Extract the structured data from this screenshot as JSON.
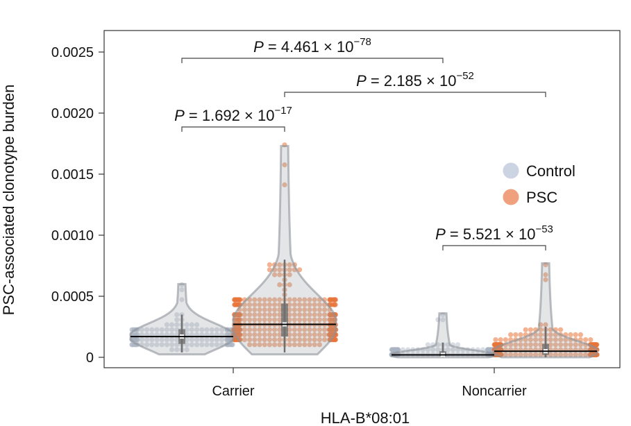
{
  "chart_data": {
    "type": "violin",
    "xlabel": "HLA-B*08:01",
    "ylabel": "PSC-associated clonotype burden",
    "ylim": [
      0,
      0.0027
    ],
    "yticks": [
      "0",
      "0.0005",
      "0.0010",
      "0.0015",
      "0.0020",
      "0.0025"
    ],
    "ytick_values": [
      0,
      0.0005,
      0.001,
      0.0015,
      0.002,
      0.0025
    ],
    "categories": [
      "Carrier",
      "Noncarrier"
    ],
    "legend": {
      "placement": "right",
      "entries": [
        {
          "label": "Control",
          "color": "#ccd3e2"
        },
        {
          "label": "PSC",
          "color": "#f0a07c"
        }
      ]
    },
    "series": [
      {
        "name": "Control",
        "color": "#aab3c4",
        "groups": [
          {
            "category": "Carrier",
            "median": 0.00017,
            "q1": 0.00011,
            "q3": 0.00023,
            "whisker_low": 4e-05,
            "whisker_high": 0.00035,
            "max": 0.0006,
            "n": 150
          },
          {
            "category": "Noncarrier",
            "median": 2e-05,
            "q1": 1e-05,
            "q3": 5e-05,
            "whisker_low": 0.0,
            "whisker_high": 0.00012,
            "max": 0.00036,
            "n": 300
          }
        ]
      },
      {
        "name": "PSC",
        "color": "#e8743b",
        "groups": [
          {
            "category": "Carrier",
            "median": 0.00027,
            "q1": 0.00017,
            "q3": 0.00044,
            "whisker_low": 4e-05,
            "whisker_high": 0.0008,
            "max": 0.00173,
            "n": 420
          },
          {
            "category": "Noncarrier",
            "median": 5e-05,
            "q1": 2e-05,
            "q3": 0.00011,
            "whisker_low": 0.0,
            "whisker_high": 0.00025,
            "max": 0.00077,
            "n": 340
          }
        ]
      }
    ],
    "comparisons": [
      {
        "from": "Carrier Control",
        "to": "Carrier PSC",
        "mantissa": "1.692",
        "exponent": "−17"
      },
      {
        "from": "Carrier Control",
        "to": "Noncarrier Control",
        "mantissa": "4.461",
        "exponent": "−78"
      },
      {
        "from": "Carrier PSC",
        "to": "Noncarrier PSC",
        "mantissa": "2.185",
        "exponent": "−52"
      },
      {
        "from": "Noncarrier Control",
        "to": "Noncarrier PSC",
        "mantissa": "5.521",
        "exponent": "−53"
      }
    ],
    "p_prefix": "P",
    "p_middle": " = ",
    "p_times": " × 10"
  }
}
